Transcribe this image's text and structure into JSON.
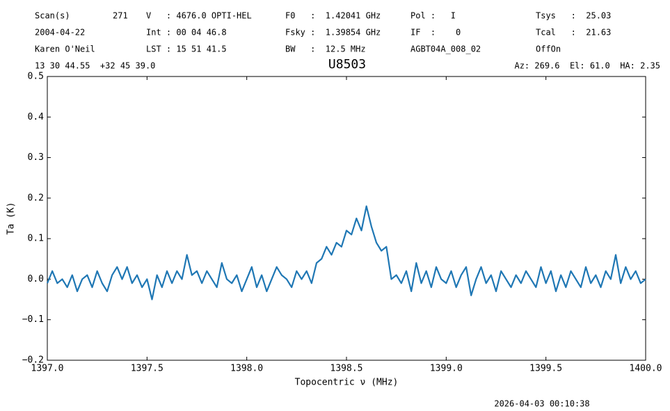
{
  "header": [
    [
      "Scan(s)",
      "271",
      "V   : 4676.0 OPTI-HEL",
      "F0   :  1.42041 GHz",
      "Pol :   I",
      "Tsys   :  25.03"
    ],
    [
      "2004-04-22",
      "Int : 00 04 46.8",
      "Fsky :  1.39854 GHz",
      "IF  :    0",
      "Tcal   :  21.63"
    ],
    [
      "Karen O'Neil",
      "LST : 15 51 41.5",
      "BW   :  12.5 MHz",
      "AGBT04A_008_02",
      "OffOn"
    ],
    [
      "13 30 44.55  +32 45 39.0",
      "Az: 269.6  El: 61.0  HA: 2.35"
    ]
  ],
  "footer": "2026-04-03 00:10:38",
  "chart_data": {
    "type": "line",
    "title": "U8503",
    "x_label": "Topocentric ν (MHz)",
    "y_label": "Ta (K)",
    "xlim": [
      1397.0,
      1400.0
    ],
    "xticks": [
      {
        "value": 1397.0,
        "label": "1397.0"
      },
      1397.5,
      {
        "value": 1398.0,
        "label": "1398.0"
      },
      1398.5,
      {
        "value": 1399.0,
        "label": "1399.0"
      },
      1399.5,
      {
        "value": 1400.0,
        "label": "1400.0"
      }
    ],
    "ylim": [
      -0.2,
      0.5
    ],
    "yticks": [
      {
        "value": -0.2,
        "label": "−0.2"
      },
      {
        "value": -0.1,
        "label": "−0.1"
      },
      {
        "value": 0,
        "label": "0.0"
      },
      0.1,
      0.2,
      0.3,
      0.4,
      0.5
    ],
    "color": "#1f77b4",
    "x": [
      1397.0,
      1397.025,
      1397.05,
      1397.075,
      1397.1,
      1397.125,
      1397.15,
      1397.175,
      1397.2,
      1397.225,
      1397.25,
      1397.275,
      1397.3,
      1397.325,
      1397.35,
      1397.375,
      1397.4,
      1397.425,
      1397.45,
      1397.475,
      1397.5,
      1397.525,
      1397.55,
      1397.575,
      1397.6,
      1397.625,
      1397.65,
      1397.675,
      1397.7,
      1397.725,
      1397.75,
      1397.775,
      1397.8,
      1397.825,
      1397.85,
      1397.875,
      1397.9,
      1397.925,
      1397.95,
      1397.975,
      1398.0,
      1398.025,
      1398.05,
      1398.075,
      1398.1,
      1398.125,
      1398.15,
      1398.175,
      1398.2,
      1398.225,
      1398.25,
      1398.275,
      1398.3,
      1398.325,
      1398.35,
      1398.375,
      1398.4,
      1398.425,
      1398.45,
      1398.475,
      1398.5,
      1398.525,
      1398.55,
      1398.575,
      1398.6,
      1398.625,
      1398.65,
      1398.675,
      1398.7,
      1398.725,
      1398.75,
      1398.775,
      1398.8,
      1398.825,
      1398.85,
      1398.875,
      1398.9,
      1398.925,
      1398.95,
      1398.975,
      1399.0,
      1399.025,
      1399.05,
      1399.075,
      1399.1,
      1399.125,
      1399.15,
      1399.175,
      1399.2,
      1399.225,
      1399.25,
      1399.275,
      1399.3,
      1399.325,
      1399.35,
      1399.375,
      1399.4,
      1399.425,
      1399.45,
      1399.475,
      1399.5,
      1399.525,
      1399.55,
      1399.575,
      1399.6,
      1399.625,
      1399.65,
      1399.675,
      1399.7,
      1399.725,
      1399.75,
      1399.775,
      1399.8,
      1399.825,
      1399.85,
      1399.875,
      1399.9,
      1399.925,
      1399.95,
      1399.975,
      1400.0
    ],
    "values": [
      -0.01,
      0.02,
      -0.01,
      0.0,
      -0.02,
      0.01,
      -0.03,
      0.0,
      0.01,
      -0.02,
      0.02,
      -0.01,
      -0.03,
      0.01,
      0.03,
      0.0,
      0.03,
      -0.01,
      0.01,
      -0.02,
      0.0,
      -0.05,
      0.01,
      -0.02,
      0.02,
      -0.01,
      0.02,
      0.0,
      0.06,
      0.01,
      0.02,
      -0.01,
      0.02,
      0.0,
      -0.02,
      0.04,
      0.0,
      -0.01,
      0.01,
      -0.03,
      0.0,
      0.03,
      -0.02,
      0.01,
      -0.03,
      0.0,
      0.03,
      0.01,
      0.0,
      -0.02,
      0.02,
      0.0,
      0.02,
      -0.01,
      0.04,
      0.05,
      0.08,
      0.06,
      0.09,
      0.08,
      0.12,
      0.11,
      0.15,
      0.12,
      0.18,
      0.13,
      0.09,
      0.07,
      0.08,
      0.0,
      0.01,
      -0.01,
      0.02,
      -0.03,
      0.04,
      -0.01,
      0.02,
      -0.02,
      0.03,
      0.0,
      -0.01,
      0.02,
      -0.02,
      0.01,
      0.03,
      -0.04,
      0.0,
      0.03,
      -0.01,
      0.01,
      -0.03,
      0.02,
      0.0,
      -0.02,
      0.01,
      -0.01,
      0.02,
      0.0,
      -0.02,
      0.03,
      -0.01,
      0.02,
      -0.03,
      0.01,
      -0.02,
      0.02,
      0.0,
      -0.02,
      0.03,
      -0.01,
      0.01,
      -0.02,
      0.02,
      0.0,
      0.06,
      -0.01,
      0.03,
      0.0,
      0.02,
      -0.01,
      0.0
    ]
  }
}
